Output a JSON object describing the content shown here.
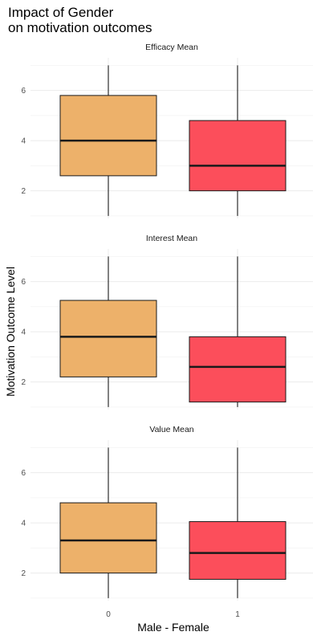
{
  "chart_data": {
    "type": "boxplot",
    "title_lines": [
      "Impact of Gender",
      "on motivation outcomes"
    ],
    "xlabel": "Male - Female",
    "ylabel": "Motivation Outcome Level",
    "categories": [
      "0",
      "1"
    ],
    "colors": [
      "#EDB16A",
      "#FC4E5B"
    ],
    "ylim": [
      0.9,
      7.3
    ],
    "yticks": [
      2,
      4,
      6
    ],
    "yminor": [
      1,
      3,
      5,
      7
    ],
    "grid": true,
    "legend": "none",
    "panels": [
      {
        "name": "Efficacy Mean",
        "boxes": [
          {
            "category": "0",
            "min": 1.0,
            "q1": 2.6,
            "median": 4.0,
            "q3": 5.8,
            "max": 7.0
          },
          {
            "category": "1",
            "min": 1.0,
            "q1": 2.0,
            "median": 3.0,
            "q3": 4.8,
            "max": 7.0
          }
        ]
      },
      {
        "name": "Interest Mean",
        "boxes": [
          {
            "category": "0",
            "min": 1.0,
            "q1": 2.2,
            "median": 3.8,
            "q3": 5.25,
            "max": 7.0
          },
          {
            "category": "1",
            "min": 1.0,
            "q1": 1.2,
            "median": 2.6,
            "q3": 3.8,
            "max": 7.0
          }
        ]
      },
      {
        "name": "Value Mean",
        "boxes": [
          {
            "category": "0",
            "min": 1.0,
            "q1": 2.0,
            "median": 3.3,
            "q3": 4.8,
            "max": 7.0
          },
          {
            "category": "1",
            "min": 1.0,
            "q1": 1.75,
            "median": 2.8,
            "q3": 4.05,
            "max": 7.0
          }
        ]
      }
    ]
  }
}
